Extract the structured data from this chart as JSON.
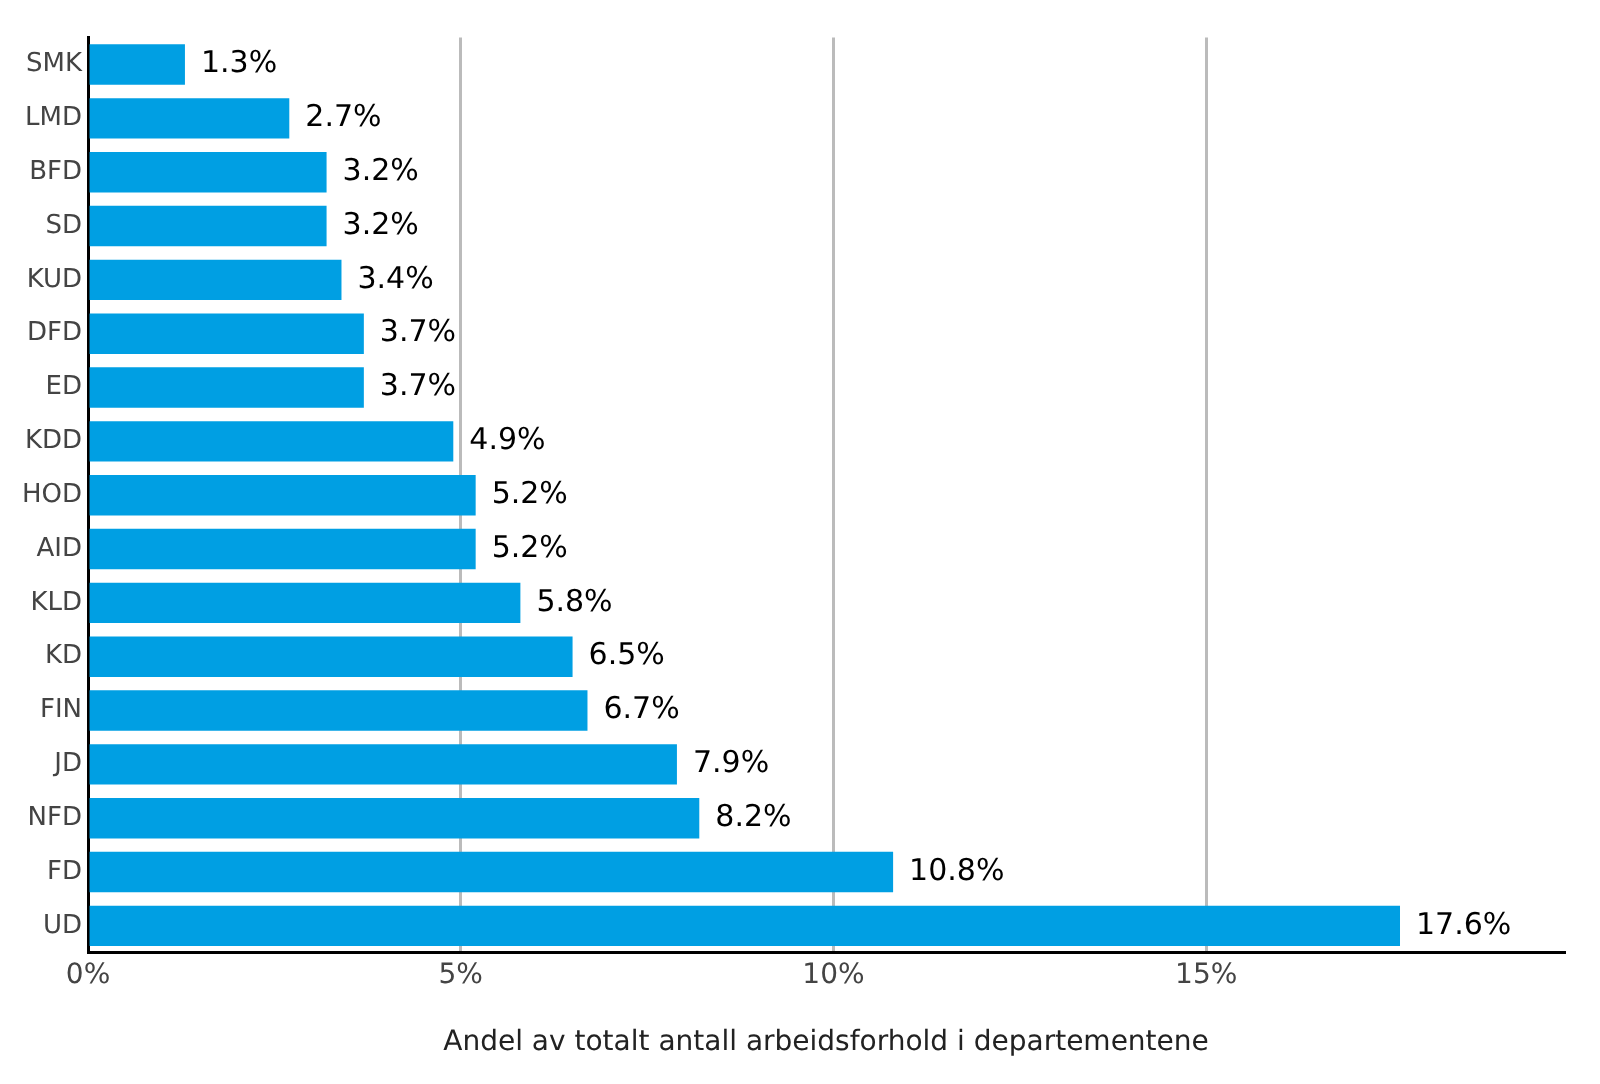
{
  "chart_data": {
    "type": "bar",
    "orientation": "horizontal",
    "xlabel": "Andel av totalt antall arbeidsforhold i departementene",
    "categories": [
      "SMK",
      "LMD",
      "BFD",
      "SD",
      "KUD",
      "DFD",
      "ED",
      "KDD",
      "HOD",
      "AID",
      "KLD",
      "KD",
      "FIN",
      "JD",
      "NFD",
      "FD",
      "UD"
    ],
    "values": [
      1.3,
      2.7,
      3.2,
      3.2,
      3.4,
      3.7,
      3.7,
      4.9,
      5.2,
      5.2,
      5.8,
      6.5,
      6.7,
      7.9,
      8.2,
      10.8,
      17.6
    ],
    "value_labels": [
      "1.3%",
      "2.7%",
      "3.2%",
      "3.2%",
      "3.4%",
      "3.7%",
      "3.7%",
      "4.9%",
      "5.2%",
      "5.2%",
      "5.8%",
      "6.5%",
      "6.7%",
      "7.9%",
      "8.2%",
      "10.8%",
      "17.6%"
    ],
    "color": "#009fe3",
    "xlim": [
      0,
      19.8
    ],
    "xticks": [
      {
        "value": 0,
        "label": "0%"
      },
      {
        "value": 5,
        "label": "5%"
      },
      {
        "value": 10,
        "label": "10%"
      },
      {
        "value": 15,
        "label": "15%"
      }
    ],
    "grid": "x",
    "legend": false
  }
}
